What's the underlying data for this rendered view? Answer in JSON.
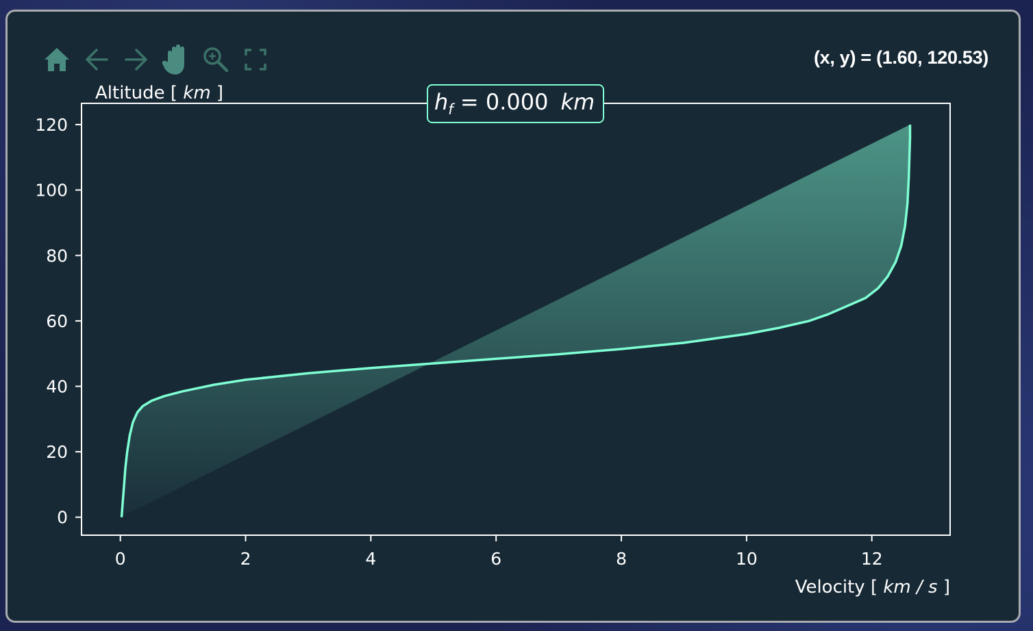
{
  "toolbar": {
    "icons": [
      "home-icon",
      "back-arrow-icon",
      "forward-arrow-icon",
      "pan-hand-icon",
      "zoom-icon",
      "fullscreen-icon"
    ],
    "active_color": "#4a8c80",
    "inactive_color": "#3b7268"
  },
  "coordinates_readout": "(x, y) = (1.60, 120.53)",
  "colors": {
    "background": "#172935",
    "line": "#7fffd4",
    "fill": "#4f9a8a",
    "text": "#ffffff",
    "frame": "#a9acb0"
  },
  "annotation": {
    "h": "h",
    "subscript": "f",
    "value": " = 0.000",
    "unit": "km"
  },
  "chart_data": {
    "type": "line",
    "xlabel": {
      "text": "Velocity [ ",
      "unit": "km / s",
      "close": " ]"
    },
    "ylabel": {
      "text": "Altitude [ ",
      "unit": "km",
      "close": " ]"
    },
    "xlim": [
      -0.62,
      13.25
    ],
    "ylim": [
      -5.5,
      126.5
    ],
    "xticks": [
      0,
      2,
      4,
      6,
      8,
      10,
      12
    ],
    "yticks": [
      0,
      20,
      40,
      60,
      80,
      100,
      120
    ],
    "grid": false,
    "series": [
      {
        "type": "line",
        "x": [
          0.02,
          0.04,
          0.06,
          0.08,
          0.11,
          0.15,
          0.2,
          0.27,
          0.36,
          0.5,
          0.7,
          1.0,
          1.5,
          2.0,
          3.0,
          4.0,
          5.0,
          6.0,
          7.0,
          8.0,
          9.0,
          10.0,
          10.5,
          11.0,
          11.3,
          11.6,
          11.9,
          12.1,
          12.25,
          12.38,
          12.47,
          12.53,
          12.57,
          12.59,
          12.6,
          12.61,
          12.61
        ],
        "y": [
          0,
          5,
          10,
          15,
          20,
          25,
          29,
          32,
          34,
          35.6,
          37,
          38.5,
          40.5,
          42,
          44,
          45.6,
          47,
          48.4,
          49.8,
          51.4,
          53.3,
          56,
          57.8,
          60,
          62,
          64.5,
          67,
          70,
          73.5,
          78,
          83,
          89,
          96,
          104,
          110,
          116,
          120
        ]
      },
      {
        "type": "area",
        "x": [
          0,
          12.61
        ],
        "y": [
          0,
          120
        ]
      }
    ]
  }
}
